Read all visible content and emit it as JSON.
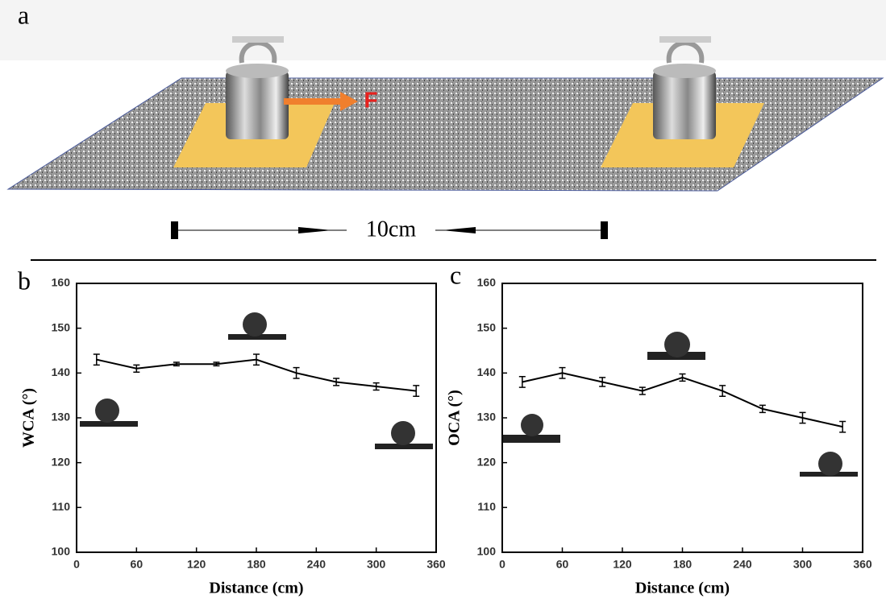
{
  "panel_labels": [
    "a",
    "b",
    "c"
  ],
  "diagram": {
    "force_label": "F",
    "distance_label": "10cm"
  },
  "chart_data": [
    {
      "type": "line",
      "x_label": "Distance (cm)",
      "y_label": "WCA (°)",
      "x": [
        20,
        60,
        100,
        140,
        180,
        220,
        260,
        300,
        340
      ],
      "series": [
        {
          "color": "#000000",
          "values": [
            143,
            141,
            142,
            142,
            143,
            140,
            138,
            137,
            136
          ],
          "errors": [
            1.2,
            0.8,
            0.4,
            0.4,
            1.2,
            1.2,
            0.8,
            0.8,
            1.2
          ]
        }
      ],
      "xlim": [
        0,
        360
      ],
      "xticks": [
        0,
        60,
        120,
        180,
        240,
        300,
        360
      ],
      "ylim": [
        100,
        160
      ],
      "yticks": [
        100,
        110,
        120,
        130,
        140,
        150,
        160
      ]
    },
    {
      "type": "line",
      "x_label": "Distance (cm)",
      "y_label": "OCA (°)",
      "x": [
        20,
        60,
        100,
        140,
        180,
        220,
        260,
        300,
        340
      ],
      "series": [
        {
          "color": "#000000",
          "values": [
            138,
            140,
            138,
            136,
            139,
            136,
            132,
            130,
            128
          ],
          "errors": [
            1.2,
            1.2,
            1.0,
            0.8,
            0.8,
            1.2,
            0.8,
            1.2,
            1.2
          ]
        }
      ],
      "xlim": [
        0,
        360
      ],
      "xticks": [
        0,
        60,
        120,
        180,
        240,
        300,
        360
      ],
      "ylim": [
        100,
        160
      ],
      "yticks": [
        100,
        110,
        120,
        130,
        140,
        150,
        160
      ]
    }
  ]
}
